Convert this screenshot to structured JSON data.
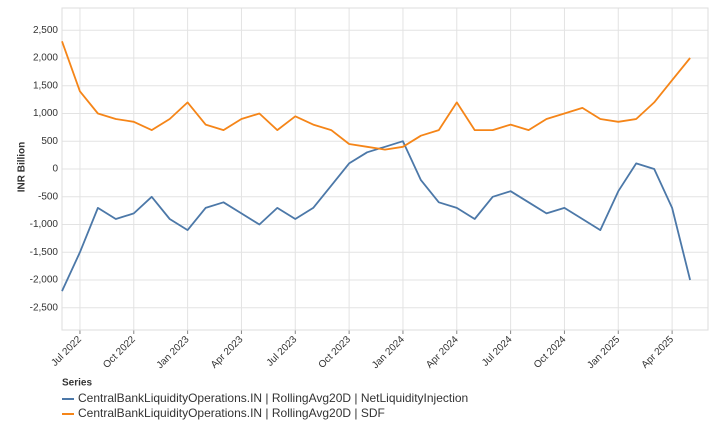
{
  "chart_data": {
    "type": "line",
    "y_label": "INR Billion",
    "legend_title": "Series",
    "grid": true,
    "x": [
      "2022-06",
      "2022-07",
      "2022-08",
      "2022-09",
      "2022-10",
      "2022-11",
      "2022-12",
      "2023-01",
      "2023-02",
      "2023-03",
      "2023-04",
      "2023-05",
      "2023-06",
      "2023-07",
      "2023-08",
      "2023-09",
      "2023-10",
      "2023-11",
      "2023-12",
      "2024-01",
      "2024-02",
      "2024-03",
      "2024-04",
      "2024-05",
      "2024-06",
      "2024-07",
      "2024-08",
      "2024-09",
      "2024-10",
      "2024-11",
      "2024-12",
      "2025-01",
      "2025-02",
      "2025-03",
      "2025-04",
      "2025-05"
    ],
    "xlim": [
      "2022-06",
      "2025-06"
    ],
    "xticks": [
      {
        "value": "2022-07",
        "label": "Jul 2022"
      },
      {
        "value": "2022-10",
        "label": "Oct 2022"
      },
      {
        "value": "2023-01",
        "label": "Jan 2023"
      },
      {
        "value": "2023-04",
        "label": "Apr 2023"
      },
      {
        "value": "2023-07",
        "label": "Jul 2023"
      },
      {
        "value": "2023-10",
        "label": "Oct 2023"
      },
      {
        "value": "2024-01",
        "label": "Jan 2024"
      },
      {
        "value": "2024-04",
        "label": "Apr 2024"
      },
      {
        "value": "2024-07",
        "label": "Jul 2024"
      },
      {
        "value": "2024-10",
        "label": "Oct 2024"
      },
      {
        "value": "2025-01",
        "label": "Jan 2025"
      },
      {
        "value": "2025-04",
        "label": "Apr 2025"
      }
    ],
    "ylim": [
      -2900,
      2900
    ],
    "yticks": [
      {
        "value": -2500,
        "label": "-2,500"
      },
      {
        "value": -2000,
        "label": "-2,000"
      },
      {
        "value": -1500,
        "label": "-1,500"
      },
      {
        "value": -1000,
        "label": "-1,000"
      },
      -500,
      0,
      500,
      {
        "value": 1000,
        "label": "1,000"
      },
      {
        "value": 1500,
        "label": "1,500"
      },
      {
        "value": 2000,
        "label": "2,000"
      },
      {
        "value": 2500,
        "label": "2,500"
      }
    ],
    "series": [
      {
        "name": "CentralBankLiquidityOperations.IN | RollingAvg20D | NetLiquidityInjection",
        "color": "#4c78a8",
        "values": [
          -2200,
          -1500,
          -700,
          -900,
          -800,
          -500,
          -900,
          -1100,
          -700,
          -600,
          -800,
          -1000,
          -700,
          -900,
          -700,
          -300,
          100,
          300,
          400,
          500,
          -200,
          -600,
          -700,
          -900,
          -500,
          -400,
          -600,
          -800,
          -700,
          -900,
          -1100,
          -400,
          100,
          0,
          -700,
          -2000
        ]
      },
      {
        "name": "CentralBankLiquidityOperations.IN | RollingAvg20D | SDF",
        "color": "#f58518",
        "values": [
          2300,
          1400,
          1000,
          900,
          850,
          700,
          900,
          1200,
          800,
          700,
          900,
          1000,
          700,
          950,
          800,
          700,
          450,
          400,
          350,
          400,
          600,
          700,
          1200,
          700,
          700,
          800,
          700,
          900,
          1000,
          1100,
          900,
          850,
          900,
          1200,
          1600,
          2000
        ]
      }
    ]
  }
}
